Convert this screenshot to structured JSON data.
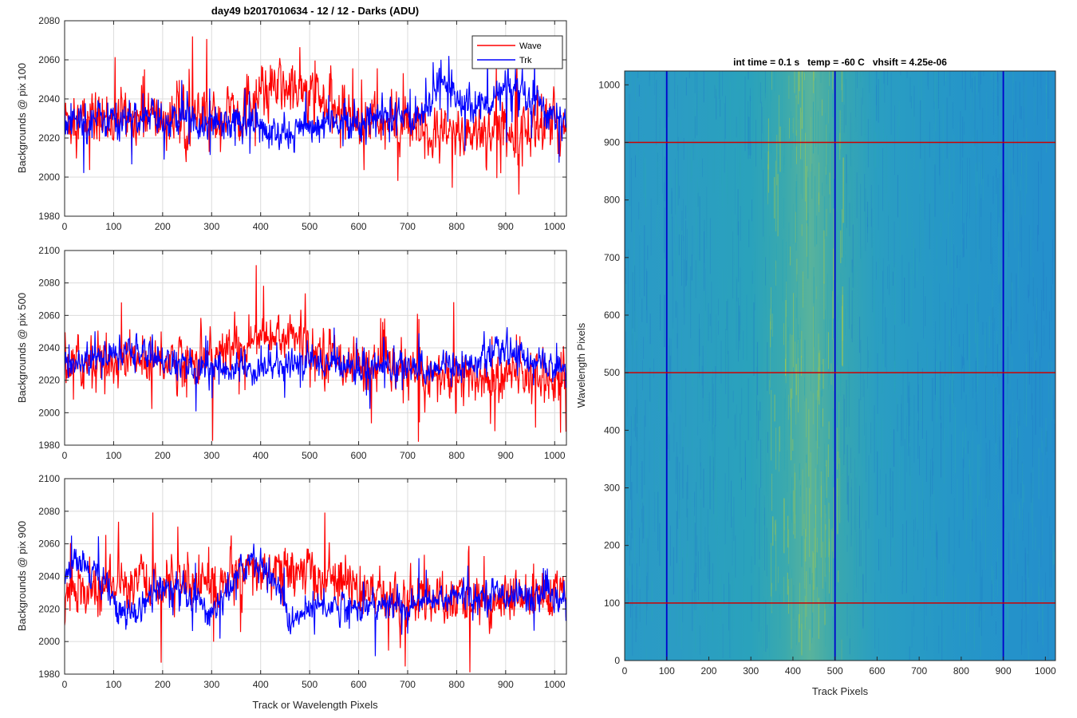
{
  "figure": {
    "title": "day49 b2017010634 - 12 / 12 - Darks (ADU)",
    "heatmap_title": "int time = 0.1 s   temp = -60 C   vhsift = 4.25e-06"
  },
  "chart_data": [
    {
      "type": "line",
      "title": "day49 b2017010634 - 12 / 12 - Darks (ADU)",
      "xlabel": "",
      "ylabel": "Backgrounds @ pix 100",
      "xlim": [
        0,
        1024
      ],
      "ylim": [
        1980,
        2080
      ],
      "xticks": [
        0,
        100,
        200,
        300,
        400,
        500,
        600,
        700,
        800,
        900,
        1000
      ],
      "yticks": [
        1980,
        2000,
        2020,
        2040,
        2060,
        2080
      ],
      "grid": true,
      "legend": "top-right",
      "series": [
        {
          "name": "Wave",
          "color": "#ff0000",
          "base": 2028,
          "noise": 9,
          "profile_x": [
            0,
            150,
            300,
            380,
            430,
            480,
            560,
            650,
            750,
            850,
            1024
          ],
          "profile_y": [
            2029,
            2030,
            2029,
            2036,
            2046,
            2044,
            2033,
            2028,
            2020,
            2024,
            2026
          ]
        },
        {
          "name": "Trk",
          "color": "#0000ff",
          "base": 2029,
          "noise": 6,
          "profile_x": [
            0,
            150,
            300,
            380,
            430,
            480,
            560,
            650,
            720,
            770,
            800,
            850,
            900,
            1024
          ],
          "profile_y": [
            2030,
            2030,
            2029,
            2028,
            2020,
            2024,
            2028,
            2031,
            2030,
            2050,
            2040,
            2036,
            2044,
            2029
          ]
        }
      ]
    },
    {
      "type": "line",
      "xlabel": "",
      "ylabel": "Backgrounds @ pix 500",
      "xlim": [
        0,
        1024
      ],
      "ylim": [
        1980,
        2100
      ],
      "xticks": [
        0,
        100,
        200,
        300,
        400,
        500,
        600,
        700,
        800,
        900,
        1000
      ],
      "yticks": [
        1980,
        2000,
        2020,
        2040,
        2060,
        2080,
        2100
      ],
      "grid": true,
      "series": [
        {
          "name": "Wave",
          "color": "#ff0000",
          "base": 2030,
          "noise": 10,
          "profile_x": [
            0,
            200,
            300,
            380,
            460,
            540,
            620,
            750,
            850,
            1024
          ],
          "profile_y": [
            2031,
            2032,
            2034,
            2044,
            2048,
            2036,
            2028,
            2022,
            2021,
            2024
          ]
        },
        {
          "name": "Trk",
          "color": "#0000ff",
          "base": 2029,
          "noise": 6,
          "profile_x": [
            0,
            160,
            250,
            400,
            500,
            600,
            700,
            800,
            900,
            1024
          ],
          "profile_y": [
            2030,
            2038,
            2027,
            2027,
            2032,
            2028,
            2028,
            2029,
            2038,
            2026
          ]
        }
      ]
    },
    {
      "type": "line",
      "xlabel": "Track or Wavelength Pixels",
      "ylabel": "Backgrounds @ pix 900",
      "xlim": [
        0,
        1024
      ],
      "ylim": [
        1980,
        2100
      ],
      "xticks": [
        0,
        100,
        200,
        300,
        400,
        500,
        600,
        700,
        800,
        900,
        1000
      ],
      "yticks": [
        1980,
        2000,
        2020,
        2040,
        2060,
        2080,
        2100
      ],
      "grid": true,
      "series": [
        {
          "name": "Wave",
          "color": "#ff0000",
          "base": 2032,
          "noise": 10,
          "profile_x": [
            0,
            150,
            300,
            380,
            480,
            560,
            650,
            800,
            1024
          ],
          "profile_y": [
            2028,
            2036,
            2034,
            2042,
            2042,
            2036,
            2028,
            2024,
            2026
          ]
        },
        {
          "name": "Trk",
          "color": "#0000ff",
          "base": 2026,
          "noise": 6,
          "profile_x": [
            0,
            20,
            60,
            120,
            200,
            300,
            380,
            440,
            460,
            500,
            600,
            700,
            800,
            900,
            1024
          ],
          "profile_y": [
            2042,
            2050,
            2044,
            2014,
            2034,
            2018,
            2052,
            2034,
            2008,
            2022,
            2022,
            2022,
            2028,
            2030,
            2024
          ]
        }
      ]
    },
    {
      "type": "heatmap",
      "title": "int time = 0.1 s   temp = -60 C   vhsift = 4.25e-06",
      "xlabel": "Track Pixels",
      "ylabel": "Wavelength Pixels",
      "xlim": [
        0,
        1024
      ],
      "ylim": [
        0,
        1024
      ],
      "xticks": [
        0,
        100,
        200,
        300,
        400,
        500,
        600,
        700,
        800,
        900,
        1000
      ],
      "yticks": [
        0,
        100,
        200,
        300,
        400,
        500,
        600,
        700,
        800,
        900,
        1000
      ],
      "colors": {
        "low": "#1f78c8",
        "mid": "#2ba5b8",
        "high": "#a6c94a"
      },
      "bright_band": [
        380,
        500
      ],
      "vertical_lines": {
        "color": "#0000cc",
        "values": [
          100,
          500,
          900
        ]
      },
      "horizontal_lines": {
        "color": "#cc0000",
        "values": [
          100,
          500,
          900
        ]
      }
    }
  ]
}
